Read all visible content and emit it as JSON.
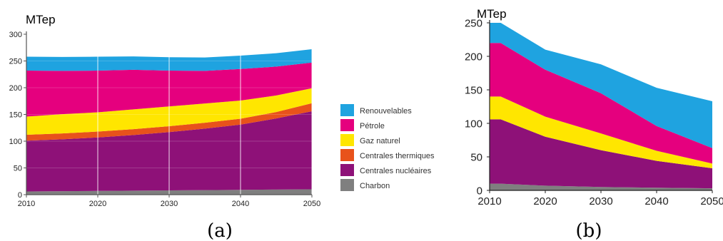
{
  "chart_data": [
    {
      "type": "area",
      "stacked": true,
      "panel_label": "(a)",
      "unit_label": "MTep",
      "x": [
        2010,
        2015,
        2020,
        2025,
        2030,
        2035,
        2040,
        2045,
        2050
      ],
      "xticks": [
        "2010",
        "2020",
        "2030",
        "2040",
        "2050"
      ],
      "ylim": [
        0,
        300
      ],
      "yticks": [
        "0",
        "50",
        "100",
        "150",
        "200",
        "250",
        "300"
      ],
      "grid": true,
      "legend_position": "right",
      "series": [
        {
          "name": "Charbon",
          "color": "#7f7f7f",
          "values": [
            6,
            6.5,
            7,
            7.5,
            8,
            8.5,
            9,
            9.5,
            10
          ]
        },
        {
          "name": "Centrales nucléaires",
          "color": "#8e1178",
          "values": [
            95,
            97,
            100,
            104,
            109,
            115,
            122,
            133,
            146
          ]
        },
        {
          "name": "Centrales thermiques",
          "color": "#e8521b",
          "values": [
            11,
            11,
            11,
            11,
            11,
            11,
            11,
            12,
            15
          ]
        },
        {
          "name": "Gaz naturel",
          "color": "#ffe600",
          "values": [
            34,
            36,
            36,
            37,
            37,
            36,
            34,
            31,
            28
          ]
        },
        {
          "name": "Pétrole",
          "color": "#e5007e",
          "values": [
            86,
            81,
            78,
            74,
            67,
            61,
            59,
            54,
            48
          ]
        },
        {
          "name": "Renouvelables",
          "color": "#1fa3e0",
          "values": [
            26,
            26,
            26,
            25,
            25,
            25,
            25,
            25,
            25
          ]
        }
      ]
    },
    {
      "type": "area",
      "stacked": true,
      "panel_label": "(b)",
      "unit_label": "MTep",
      "x": [
        2010,
        2012,
        2020,
        2030,
        2040,
        2050
      ],
      "xticks": [
        "2010",
        "2020",
        "2030",
        "2040",
        "2050"
      ],
      "ylim": [
        0,
        250
      ],
      "yticks": [
        "0",
        "50",
        "100",
        "150",
        "200",
        "250"
      ],
      "grid": false,
      "series": [
        {
          "name": "Charbon",
          "color": "#7f7f7f",
          "values": [
            10,
            10,
            7,
            5,
            4,
            3
          ]
        },
        {
          "name": "Centrales nucléaires",
          "color": "#8e1178",
          "values": [
            96,
            96,
            73,
            55,
            40,
            30
          ]
        },
        {
          "name": "Gaz naturel",
          "color": "#ffe600",
          "values": [
            34,
            34,
            30,
            25,
            15,
            7
          ]
        },
        {
          "name": "Pétrole",
          "color": "#e5007e",
          "values": [
            80,
            80,
            70,
            60,
            37,
            23
          ]
        },
        {
          "name": "Renouvelables",
          "color": "#1fa3e0",
          "values": [
            30,
            30,
            30,
            43,
            57,
            70
          ]
        }
      ]
    }
  ]
}
